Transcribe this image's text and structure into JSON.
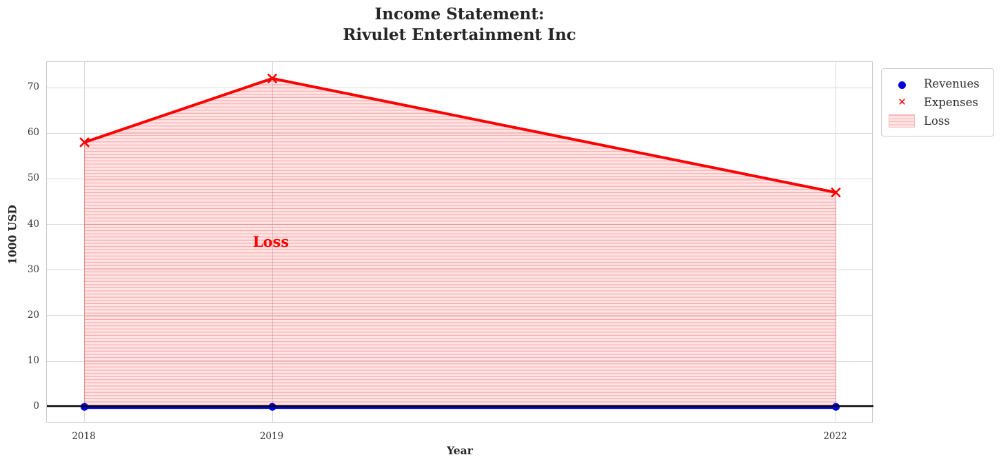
{
  "title": {
    "line1": "Income Statement:",
    "line2": "Rivulet Entertainment Inc"
  },
  "axes": {
    "xlabel": "Year",
    "ylabel": "1000 USD"
  },
  "legend": {
    "items": [
      {
        "label": "Revenues",
        "marker": "circle-on-line",
        "color": "#0000dd"
      },
      {
        "label": "Expenses",
        "marker": "x-on-line",
        "color": "#ff0000"
      },
      {
        "label": "Loss",
        "marker": "hatched-patch",
        "color": "#f9c9c9"
      }
    ]
  },
  "annotation": {
    "text": "Loss",
    "color": "#ff0000"
  },
  "colors": {
    "revenues_line": "#0000dd",
    "expenses_line": "#ff0000",
    "loss_fill_stripe": "rgba(255,0,0,0.28)",
    "loss_fill_base": "rgba(255,0,0,0.10)",
    "zero_line": "#000000",
    "grid": "#d8d8d8",
    "spine": "#c9c9c9",
    "text": "#262626"
  },
  "chart_data": {
    "type": "line",
    "title": "Income Statement:\nRivulet Entertainment Inc",
    "xlabel": "Year",
    "ylabel": "1000 USD",
    "x": [
      2018,
      2019,
      2022
    ],
    "xticklabels": [
      "2018",
      "2019",
      "2022"
    ],
    "series": [
      {
        "name": "Revenues",
        "values": [
          0,
          0,
          0
        ],
        "color": "#0000dd",
        "marker": "circle",
        "linewidth": 4
      },
      {
        "name": "Expenses",
        "values": [
          58,
          72,
          47
        ],
        "color": "#ff0000",
        "marker": "x",
        "linewidth": 4
      }
    ],
    "fill_between": {
      "label": "Loss",
      "upper_series": "Expenses",
      "lower": 0,
      "hatch": "horizontal-lines"
    },
    "annotation": {
      "text": "Loss",
      "x": 2019,
      "y": 36
    },
    "axhline": 0,
    "xlim": [
      2017.8,
      2022.2
    ],
    "ylim": [
      -3.6,
      75.6
    ],
    "yticks": [
      0,
      10,
      20,
      30,
      40,
      50,
      60,
      70
    ],
    "grid": true,
    "legend_position": "outside-upper-right"
  }
}
